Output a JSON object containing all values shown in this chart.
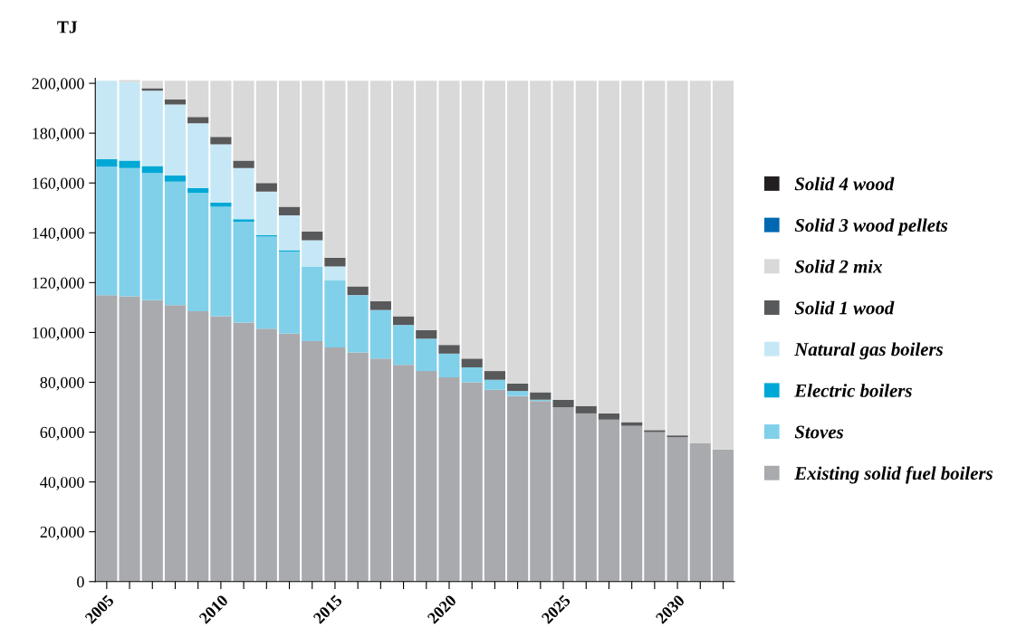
{
  "chart_data": {
    "type": "bar",
    "stacked": true,
    "ylabel": "TJ",
    "categories": [
      "2005",
      null,
      null,
      null,
      null,
      "2010",
      null,
      null,
      null,
      null,
      "2015",
      null,
      null,
      null,
      null,
      "2020",
      null,
      null,
      null,
      null,
      "2025",
      null,
      null,
      null,
      null,
      "2030",
      null,
      null
    ],
    "series": [
      {
        "name": "Existing solid fuel boilers",
        "color": "#a9aaae",
        "values": [
          115000,
          114500,
          113000,
          111000,
          108500,
          106500,
          104000,
          101500,
          99500,
          96500,
          94000,
          92000,
          89500,
          87000,
          84500,
          82000,
          80000,
          77000,
          74500,
          72500,
          70000,
          67500,
          65000,
          62500,
          60000,
          58000,
          55500,
          53000
        ]
      },
      {
        "name": "Stoves",
        "color": "#80d0ea",
        "values": [
          51500,
          51500,
          51000,
          49500,
          47500,
          44000,
          40500,
          37000,
          33000,
          30000,
          27000,
          23000,
          19500,
          16000,
          13000,
          9500,
          6000,
          4000,
          2000,
          500,
          0,
          0,
          0,
          0,
          0,
          0,
          0,
          0
        ]
      },
      {
        "name": "Electric boilers",
        "color": "#00a8d6",
        "values": [
          3000,
          3000,
          2800,
          2500,
          2000,
          1600,
          1000,
          600,
          500,
          0,
          0,
          0,
          0,
          0,
          0,
          0,
          0,
          0,
          0,
          0,
          0,
          0,
          0,
          0,
          0,
          0,
          0,
          0
        ]
      },
      {
        "name": "Natural gas boilers",
        "color": "#c6e8f6",
        "values": [
          31500,
          31500,
          30200,
          28500,
          26000,
          23400,
          20500,
          17400,
          14000,
          10500,
          5500,
          0,
          0,
          0,
          0,
          0,
          0,
          0,
          0,
          0,
          0,
          0,
          0,
          0,
          0,
          0,
          0,
          0
        ]
      },
      {
        "name": "Solid 1 wood",
        "color": "#58595b",
        "values": [
          0,
          0,
          1000,
          2000,
          2500,
          3000,
          3000,
          3500,
          3500,
          3500,
          3500,
          3500,
          3500,
          3500,
          3500,
          3500,
          3500,
          3500,
          3000,
          3000,
          3000,
          3000,
          2500,
          1500,
          800,
          700,
          0,
          0
        ]
      },
      {
        "name": "Solid 2 mix",
        "color": "#d9d9d9",
        "values": [
          0,
          800,
          3000,
          7500,
          14500,
          22500,
          32000,
          41000,
          50500,
          60500,
          71000,
          82500,
          88500,
          94500,
          100000,
          106000,
          111500,
          116500,
          121500,
          125000,
          128000,
          130500,
          133500,
          137000,
          140200,
          142300,
          145500,
          148000
        ]
      },
      {
        "name": "Solid 3 wood pellets",
        "color": "#0067b1",
        "values": [
          0,
          0,
          0,
          0,
          0,
          0,
          0,
          0,
          0,
          0,
          0,
          0,
          0,
          0,
          0,
          0,
          0,
          0,
          0,
          0,
          0,
          0,
          0,
          0,
          0,
          0,
          0,
          0
        ]
      },
      {
        "name": "Solid 4 wood",
        "color": "#231f20",
        "values": [
          0,
          0,
          0,
          0,
          0,
          0,
          0,
          0,
          0,
          0,
          0,
          0,
          0,
          0,
          0,
          0,
          0,
          0,
          0,
          0,
          0,
          0,
          0,
          0,
          0,
          0,
          0,
          0
        ]
      }
    ],
    "ylim": [
      0,
      202000
    ],
    "yticks": [
      {
        "value": 0,
        "label": "0"
      },
      {
        "value": 20000,
        "label": "20,000"
      },
      {
        "value": 40000,
        "label": "40,000"
      },
      {
        "value": 60000,
        "label": "60,000"
      },
      {
        "value": 80000,
        "label": "80,000"
      },
      {
        "value": 100000,
        "label": "100,000"
      },
      {
        "value": 120000,
        "label": "120,000"
      },
      {
        "value": 140000,
        "label": "140,000"
      },
      {
        "value": 160000,
        "label": "160,000"
      },
      {
        "value": 180000,
        "label": "180,000"
      },
      {
        "value": 200000,
        "label": "200,000"
      }
    ],
    "legend": "right"
  }
}
